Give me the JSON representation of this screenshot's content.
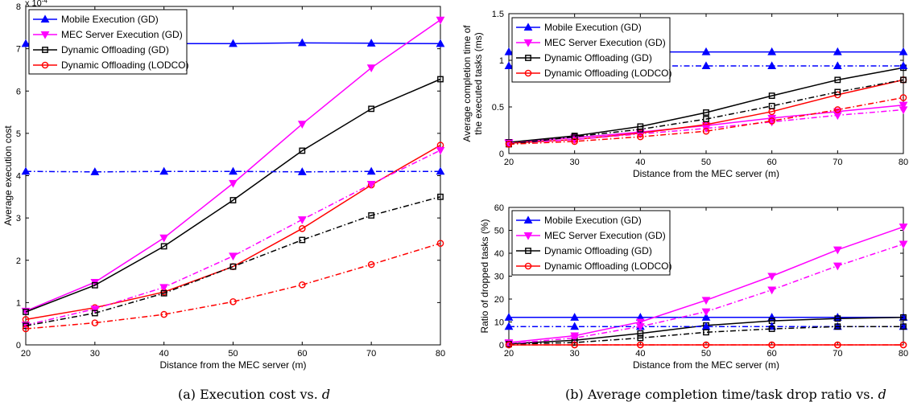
{
  "captions": {
    "a": "(a)  Execution cost vs. d",
    "b": "(b)  Average completion time/task drop ratio vs. d"
  },
  "style": {
    "series_colors": [
      "#0000ff",
      "#ff00ff",
      "#000000",
      "#ff0000"
    ],
    "series_markers": [
      "triangle-up",
      "triangle-down",
      "square",
      "circle"
    ],
    "solid_label": "solid",
    "dashdot_label": "dash-dot"
  },
  "chart_data": [
    {
      "id": "a",
      "type": "line",
      "title": "",
      "xlabel": "Distance from the MEC server (m)",
      "ylabel": "Average execution cost",
      "y_multiplier": "x 10^-4",
      "x": [
        20,
        30,
        40,
        50,
        60,
        70,
        80
      ],
      "xlim": [
        20,
        80
      ],
      "ylim": [
        0,
        8
      ],
      "xticks": [
        "20",
        "30",
        "40",
        "50",
        "60",
        "70",
        "80"
      ],
      "yticks": [
        "0",
        "1",
        "2",
        "3",
        "4",
        "5",
        "6",
        "7",
        "8"
      ],
      "grid": false,
      "legend_position": "top-left",
      "series": [
        {
          "name": "Mobile Execution (GD)",
          "values": [
            7.12,
            7.12,
            7.12,
            7.12,
            7.14,
            7.13,
            7.12
          ]
        },
        {
          "name": "MEC Server Execution (GD)",
          "values": [
            0.8,
            1.48,
            2.53,
            3.82,
            5.22,
            6.55,
            7.68
          ]
        },
        {
          "name": "Dynamic Offloading (GD)",
          "values": [
            0.78,
            1.41,
            2.33,
            3.42,
            4.59,
            5.58,
            6.28
          ]
        },
        {
          "name": "Dynamic Offloading (LODCO)",
          "values": [
            0.6,
            0.88,
            1.25,
            1.85,
            2.75,
            3.78,
            4.72
          ]
        },
        {
          "line": "dash-dot",
          "values": [
            4.1,
            4.09,
            4.1,
            4.1,
            4.09,
            4.1,
            4.1
          ]
        },
        {
          "line": "dash-dot",
          "values": [
            0.47,
            0.85,
            1.36,
            2.1,
            2.96,
            3.8,
            4.6
          ]
        },
        {
          "line": "dash-dot",
          "values": [
            0.45,
            0.75,
            1.22,
            1.85,
            2.48,
            3.06,
            3.5
          ]
        },
        {
          "line": "dash-dot",
          "values": [
            0.38,
            0.52,
            0.72,
            1.02,
            1.42,
            1.9,
            2.4
          ]
        }
      ]
    },
    {
      "id": "b-top",
      "type": "line",
      "title": "",
      "xlabel": "Distance from the MEC server (m)",
      "ylabel": "Average completion time of the executed tasks (ms)",
      "ylabel_lines": [
        "Average completion time of",
        "the executed tasks (ms)"
      ],
      "x": [
        20,
        30,
        40,
        50,
        60,
        70,
        80
      ],
      "xlim": [
        20,
        80
      ],
      "ylim": [
        0,
        1.5
      ],
      "xticks": [
        "20",
        "30",
        "40",
        "50",
        "60",
        "70",
        "80"
      ],
      "yticks": [
        "0",
        "0.5",
        "1",
        "1.5"
      ],
      "grid": false,
      "legend_position": "top-left",
      "series": [
        {
          "name": "Mobile Execution (GD)",
          "values": [
            1.09,
            1.09,
            1.09,
            1.09,
            1.09,
            1.09,
            1.09
          ]
        },
        {
          "name": "MEC Server Execution (GD)",
          "values": [
            0.12,
            0.17,
            0.23,
            0.3,
            0.38,
            0.45,
            0.52
          ]
        },
        {
          "name": "Dynamic Offloading (GD)",
          "values": [
            0.12,
            0.19,
            0.29,
            0.44,
            0.62,
            0.79,
            0.92
          ]
        },
        {
          "name": "Dynamic Offloading (LODCO)",
          "values": [
            0.11,
            0.15,
            0.22,
            0.31,
            0.45,
            0.63,
            0.79
          ]
        },
        {
          "line": "dash-dot",
          "values": [
            0.94,
            0.94,
            0.94,
            0.94,
            0.94,
            0.94,
            0.94
          ]
        },
        {
          "line": "dash-dot",
          "values": [
            0.11,
            0.15,
            0.21,
            0.27,
            0.34,
            0.41,
            0.47
          ]
        },
        {
          "line": "dash-dot",
          "values": [
            0.1,
            0.18,
            0.26,
            0.37,
            0.51,
            0.66,
            0.79
          ]
        },
        {
          "line": "dash-dot",
          "values": [
            0.1,
            0.13,
            0.18,
            0.24,
            0.35,
            0.47,
            0.6
          ]
        }
      ]
    },
    {
      "id": "b-bottom",
      "type": "line",
      "title": "",
      "xlabel": "Distance from the MEC server (m)",
      "ylabel": "Ratio of dropped tasks (%)",
      "x": [
        20,
        30,
        40,
        50,
        60,
        70,
        80
      ],
      "xlim": [
        20,
        80
      ],
      "ylim": [
        0,
        60
      ],
      "xticks": [
        "20",
        "30",
        "40",
        "50",
        "60",
        "70",
        "80"
      ],
      "yticks": [
        "0",
        "10",
        "20",
        "30",
        "40",
        "50",
        "60"
      ],
      "grid": false,
      "legend_position": "top-left",
      "series": [
        {
          "name": "Mobile Execution (GD)",
          "values": [
            12,
            12,
            12,
            12,
            12,
            12,
            12
          ]
        },
        {
          "name": "MEC Server Execution (GD)",
          "values": [
            1,
            4,
            10,
            19.5,
            30,
            41.5,
            51.5
          ]
        },
        {
          "name": "Dynamic Offloading (GD)",
          "values": [
            0.5,
            2,
            5,
            8.5,
            10.5,
            11.5,
            12
          ]
        },
        {
          "name": "Dynamic Offloading (LODCO)",
          "values": [
            0,
            0,
            0,
            0,
            0,
            0,
            0
          ]
        },
        {
          "line": "dash-dot",
          "values": [
            8,
            8,
            8,
            8,
            8,
            8,
            8
          ]
        },
        {
          "line": "dash-dot",
          "values": [
            0.5,
            3,
            8,
            14.5,
            24,
            34.5,
            44
          ]
        },
        {
          "line": "dash-dot",
          "values": [
            0.3,
            1,
            3,
            5.5,
            7,
            8,
            8
          ]
        },
        {
          "line": "dash-dot",
          "values": [
            0,
            0,
            0,
            0,
            0,
            0,
            0
          ]
        }
      ]
    }
  ]
}
